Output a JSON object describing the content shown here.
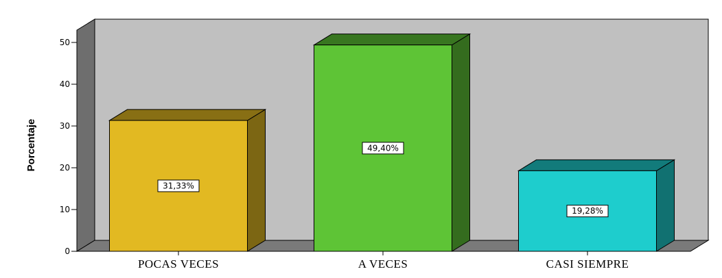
{
  "chart_data": {
    "type": "bar",
    "style": "3d",
    "categories": [
      "POCAS VECES",
      "A VECES",
      "CASI SIEMPRE"
    ],
    "values": [
      31.33,
      49.4,
      19.28
    ],
    "data_labels": [
      "31,33%",
      "49,40%",
      "19,28%"
    ],
    "colors": [
      "#e2b922",
      "#5ec436",
      "#1ecdcd"
    ],
    "ylabel": "Porcentaje",
    "xlabel": "",
    "ylim": [
      0,
      50
    ],
    "yticks": [
      "0",
      "10",
      "20",
      "30",
      "40",
      "50"
    ],
    "grid": false,
    "legend": "none",
    "background": "#c0c0c0"
  }
}
